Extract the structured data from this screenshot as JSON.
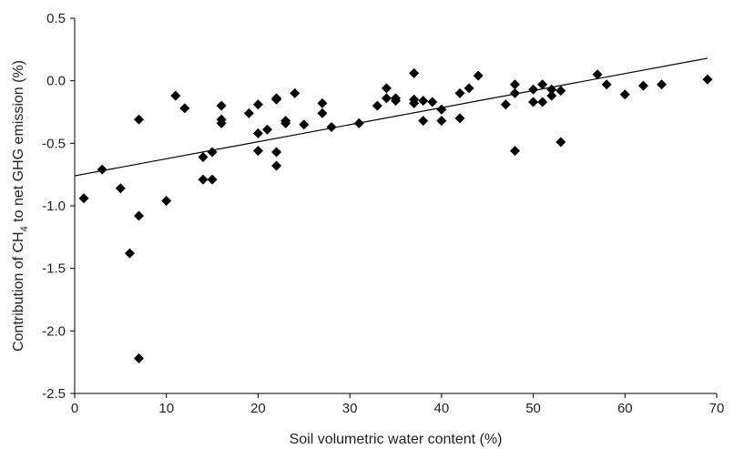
{
  "chart_data": {
    "type": "scatter",
    "xlabel": "Soil volumetric water content (%)",
    "ylabel": {
      "pre": "Contribution of CH",
      "sub": "4",
      "post": " to net GHG emission (%)"
    },
    "xlim": [
      0,
      70
    ],
    "ylim": [
      -2.5,
      0.5
    ],
    "x_ticks": [
      0,
      10,
      20,
      30,
      40,
      50,
      60,
      70
    ],
    "y_ticks": [
      0.5,
      0.0,
      -0.5,
      -1.0,
      -1.5,
      -2.0,
      -2.5
    ],
    "x_tick_labels": [
      "0",
      "10",
      "20",
      "30",
      "40",
      "50",
      "60",
      "70"
    ],
    "y_tick_labels": [
      "0.5",
      "0.0",
      "-0.5",
      "-1.0",
      "-1.5",
      "-2.0",
      "-2.5"
    ],
    "grid": false,
    "marker": "diamond",
    "marker_color": "#000000",
    "trendline": {
      "type": "linear",
      "x": [
        0,
        69
      ],
      "y": [
        -0.76,
        0.18
      ]
    },
    "points": [
      {
        "x": 1,
        "y": -0.94
      },
      {
        "x": 3,
        "y": -0.71
      },
      {
        "x": 5,
        "y": -0.86
      },
      {
        "x": 6,
        "y": -1.38
      },
      {
        "x": 7,
        "y": -0.31
      },
      {
        "x": 7,
        "y": -1.08
      },
      {
        "x": 7,
        "y": -2.22
      },
      {
        "x": 10,
        "y": -0.96
      },
      {
        "x": 11,
        "y": -0.12
      },
      {
        "x": 12,
        "y": -0.22
      },
      {
        "x": 14,
        "y": -0.61
      },
      {
        "x": 14,
        "y": -0.79
      },
      {
        "x": 15,
        "y": -0.57
      },
      {
        "x": 15,
        "y": -0.79
      },
      {
        "x": 16,
        "y": -0.2
      },
      {
        "x": 16,
        "y": -0.31
      },
      {
        "x": 16,
        "y": -0.34
      },
      {
        "x": 19,
        "y": -0.26
      },
      {
        "x": 20,
        "y": -0.19
      },
      {
        "x": 20,
        "y": -0.42
      },
      {
        "x": 20,
        "y": -0.56
      },
      {
        "x": 21,
        "y": -0.39
      },
      {
        "x": 22,
        "y": -0.14
      },
      {
        "x": 22,
        "y": -0.15
      },
      {
        "x": 22,
        "y": -0.57
      },
      {
        "x": 22,
        "y": -0.68
      },
      {
        "x": 23,
        "y": -0.32
      },
      {
        "x": 23,
        "y": -0.34
      },
      {
        "x": 24,
        "y": -0.1
      },
      {
        "x": 25,
        "y": -0.35
      },
      {
        "x": 27,
        "y": -0.18
      },
      {
        "x": 27,
        "y": -0.26
      },
      {
        "x": 28,
        "y": -0.37
      },
      {
        "x": 31,
        "y": -0.34
      },
      {
        "x": 33,
        "y": -0.2
      },
      {
        "x": 34,
        "y": -0.06
      },
      {
        "x": 34,
        "y": -0.14
      },
      {
        "x": 35,
        "y": -0.14
      },
      {
        "x": 35,
        "y": -0.16
      },
      {
        "x": 37,
        "y": 0.06
      },
      {
        "x": 37,
        "y": -0.15
      },
      {
        "x": 37,
        "y": -0.18
      },
      {
        "x": 38,
        "y": -0.16
      },
      {
        "x": 38,
        "y": -0.32
      },
      {
        "x": 39,
        "y": -0.17
      },
      {
        "x": 40,
        "y": -0.23
      },
      {
        "x": 40,
        "y": -0.32
      },
      {
        "x": 42,
        "y": -0.1
      },
      {
        "x": 42,
        "y": -0.3
      },
      {
        "x": 43,
        "y": -0.06
      },
      {
        "x": 44,
        "y": 0.04
      },
      {
        "x": 47,
        "y": -0.19
      },
      {
        "x": 48,
        "y": -0.03
      },
      {
        "x": 48,
        "y": -0.1
      },
      {
        "x": 48,
        "y": -0.56
      },
      {
        "x": 50,
        "y": -0.07
      },
      {
        "x": 50,
        "y": -0.17
      },
      {
        "x": 51,
        "y": -0.03
      },
      {
        "x": 51,
        "y": -0.17
      },
      {
        "x": 52,
        "y": -0.07
      },
      {
        "x": 52,
        "y": -0.12
      },
      {
        "x": 53,
        "y": -0.08
      },
      {
        "x": 53,
        "y": -0.49
      },
      {
        "x": 57,
        "y": 0.05
      },
      {
        "x": 58,
        "y": -0.03
      },
      {
        "x": 60,
        "y": -0.11
      },
      {
        "x": 62,
        "y": -0.04
      },
      {
        "x": 64,
        "y": -0.03
      },
      {
        "x": 69,
        "y": 0.01
      }
    ]
  }
}
